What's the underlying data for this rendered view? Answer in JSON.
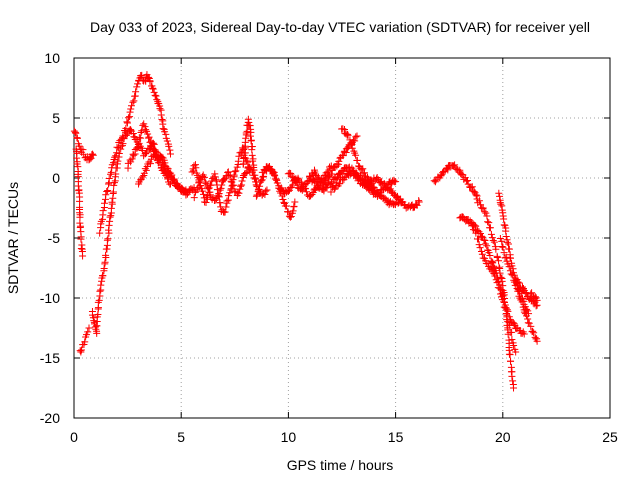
{
  "chart_data": {
    "type": "scatter",
    "title": "Day 033 of 2023, Sidereal Day-to-day VTEC variation (SDTVAR) for receiver yell",
    "xlabel": "GPS time / hours",
    "ylabel": "SDTVAR / TECUs",
    "xlim": [
      0,
      25
    ],
    "ylim": [
      -20,
      10
    ],
    "x_ticks": [
      0,
      5,
      10,
      15,
      20,
      25
    ],
    "x_tick_labels": [
      "0",
      "5",
      "10",
      "15",
      "20",
      "25"
    ],
    "y_ticks": [
      -20,
      -15,
      -10,
      -5,
      0,
      5,
      10
    ],
    "y_tick_labels": [
      "-20",
      "-15",
      "-10",
      "-5",
      "0",
      "5",
      "10"
    ],
    "grid": true,
    "marker": "+",
    "legend": "none",
    "colors": {
      "series": "#ff0000",
      "grid": "#a0a0a0",
      "axis": "#000000"
    },
    "series": [
      {
        "name": "SDTVAR",
        "tracks": [
          {
            "x": [
              0.0,
              0.1,
              0.2,
              0.3,
              0.4,
              0.5,
              0.6,
              0.7,
              0.8,
              0.85,
              0.9
            ],
            "y": [
              4.2,
              3.6,
              3.0,
              2.5,
              2.2,
              1.8,
              1.6,
              1.6,
              1.7,
              1.8,
              1.9
            ]
          },
          {
            "x": [
              0.1,
              0.15,
              0.2,
              0.25,
              0.3,
              0.35,
              0.4
            ],
            "y": [
              2.5,
              1.5,
              0.0,
              -2.0,
              -4.0,
              -5.5,
              -6.5
            ]
          },
          {
            "x": [
              0.3,
              0.4,
              0.5,
              0.6,
              0.7
            ],
            "y": [
              -14.5,
              -14.0,
              -13.5,
              -13.0,
              -12.5
            ]
          },
          {
            "x": [
              0.85,
              0.95,
              1.05,
              1.15,
              1.25,
              1.35,
              1.45,
              1.55,
              1.65,
              1.75,
              1.85,
              1.95,
              2.05,
              2.2,
              2.35,
              2.5,
              2.65,
              2.8,
              2.95,
              3.1,
              3.25,
              3.4,
              3.55,
              3.7,
              3.85,
              4.0,
              4.15,
              4.3,
              4.45,
              4.6,
              4.75,
              4.9,
              5.1,
              5.3
            ],
            "y": [
              -11.0,
              -12.0,
              -13.0,
              -10.5,
              -9.0,
              -8.0,
              -7.0,
              -5.5,
              -4.0,
              -2.5,
              -1.0,
              0.5,
              1.5,
              2.5,
              3.2,
              3.8,
              4.0,
              3.5,
              3.0,
              2.5,
              2.0,
              2.2,
              2.5,
              3.0,
              2.0,
              1.5,
              1.0,
              0.5,
              0.3,
              0.0,
              -0.5,
              -0.8,
              -1.0,
              -1.2
            ]
          },
          {
            "x": [
              1.2,
              1.35,
              1.5,
              1.65,
              1.8,
              1.95,
              2.1,
              2.25,
              2.4,
              2.55,
              2.7,
              2.85,
              3.0,
              3.1,
              3.2,
              3.3,
              3.4,
              3.5,
              3.6,
              3.7,
              3.8,
              3.9,
              4.0,
              4.1,
              4.2,
              4.35,
              4.5
            ],
            "y": [
              -4.5,
              -3.0,
              -1.5,
              0.0,
              1.0,
              2.0,
              2.8,
              3.5,
              4.0,
              5.0,
              6.0,
              7.0,
              8.0,
              8.6,
              8.3,
              8.0,
              8.5,
              8.2,
              7.8,
              7.5,
              7.0,
              6.5,
              6.0,
              5.0,
              4.0,
              3.0,
              2.0
            ]
          },
          {
            "x": [
              2.5,
              2.65,
              2.8,
              2.95,
              3.1,
              3.25,
              3.4,
              3.55,
              3.7,
              3.85,
              4.0,
              4.15,
              4.3,
              4.45,
              4.6,
              4.8,
              5.0,
              5.2,
              5.4,
              5.6
            ],
            "y": [
              1.0,
              1.5,
              2.0,
              2.5,
              3.5,
              4.5,
              4.0,
              3.0,
              2.5,
              2.0,
              1.8,
              1.5,
              1.0,
              0.5,
              0.0,
              -0.5,
              -1.0,
              -1.3,
              -1.0,
              -0.8
            ]
          },
          {
            "x": [
              3.0,
              3.15,
              3.3,
              3.45,
              3.6,
              3.75,
              3.9,
              4.05,
              4.2,
              4.35,
              4.5
            ],
            "y": [
              -0.5,
              0.0,
              0.5,
              1.0,
              1.5,
              2.0,
              1.5,
              1.0,
              0.5,
              0.0,
              -0.5
            ]
          },
          {
            "x": [
              5.5,
              5.65,
              5.8,
              5.95,
              6.1,
              6.25,
              6.4,
              6.55,
              6.7,
              6.85,
              7.0,
              7.15,
              7.3,
              7.45,
              7.6,
              7.75,
              7.9,
              8.05,
              8.2
            ],
            "y": [
              0.5,
              1.0,
              0.0,
              -1.0,
              -2.0,
              -1.5,
              -0.5,
              0.5,
              -1.0,
              -2.5,
              -3.0,
              -2.0,
              -1.0,
              0.0,
              1.0,
              2.0,
              2.5,
              1.5,
              0.5
            ]
          },
          {
            "x": [
              5.6,
              5.8,
              6.0,
              6.2,
              6.4,
              6.6,
              6.8,
              7.0,
              7.2,
              7.4,
              7.6,
              7.8,
              8.0,
              8.2,
              8.4,
              8.6,
              8.8,
              9.0
            ],
            "y": [
              -1.5,
              -0.5,
              0.3,
              -0.5,
              -1.5,
              -2.0,
              -1.0,
              0.0,
              0.5,
              -0.5,
              -1.5,
              -0.5,
              0.5,
              1.0,
              0.0,
              -1.0,
              -1.5,
              -1.0
            ]
          },
          {
            "x": [
              7.9,
              7.95,
              8.0,
              8.05,
              8.1,
              8.15,
              8.2,
              8.25,
              8.3,
              8.35,
              8.4,
              8.5,
              8.6
            ],
            "y": [
              1.0,
              2.0,
              3.0,
              3.8,
              4.5,
              5.0,
              4.2,
              3.5,
              2.5,
              1.5,
              0.5,
              -0.5,
              -1.0
            ]
          },
          {
            "x": [
              8.5,
              8.7,
              8.9,
              9.1,
              9.3,
              9.5,
              9.7,
              9.9,
              10.0,
              10.1,
              10.2,
              10.3
            ],
            "y": [
              -1.5,
              -0.5,
              0.5,
              1.0,
              0.5,
              -0.5,
              -1.5,
              -2.5,
              -3.0,
              -3.3,
              -3.0,
              -2.0
            ]
          },
          {
            "x": [
              8.8,
              9.0,
              9.2,
              9.4,
              9.6,
              9.8,
              10.0,
              10.2,
              10.4,
              10.6,
              10.8,
              11.0,
              11.2,
              11.4,
              11.6,
              11.8,
              12.0
            ],
            "y": [
              0.5,
              1.0,
              0.8,
              0.0,
              -0.8,
              -1.2,
              -1.0,
              -0.5,
              0.0,
              -0.5,
              -1.0,
              -1.5,
              -1.0,
              -0.5,
              0.0,
              0.5,
              1.0
            ]
          },
          {
            "x": [
              10.0,
              10.2,
              10.4,
              10.6,
              10.8,
              11.0,
              11.2,
              11.4,
              11.6,
              11.8,
              12.0,
              12.2,
              12.4,
              12.6,
              12.8,
              13.0,
              13.2
            ],
            "y": [
              0.5,
              0.0,
              -0.5,
              -1.0,
              -0.5,
              0.0,
              0.5,
              0.0,
              -0.5,
              0.0,
              0.5,
              1.0,
              1.5,
              2.0,
              2.5,
              3.0,
              3.5
            ]
          },
          {
            "x": [
              11.0,
              11.3,
              11.6,
              11.9,
              12.2,
              12.5,
              12.8,
              13.1,
              13.4,
              13.7,
              14.0,
              14.3,
              14.6,
              14.9,
              15.2
            ],
            "y": [
              0.0,
              -0.5,
              -1.0,
              -0.5,
              0.0,
              0.5,
              1.0,
              0.5,
              0.0,
              -0.5,
              -1.0,
              -1.5,
              -2.0,
              -2.2,
              -2.0
            ]
          },
          {
            "x": [
              12.5,
              12.6,
              12.7,
              12.8,
              12.9,
              13.0,
              13.1,
              13.2,
              13.3,
              13.4,
              13.5,
              13.6,
              13.7,
              13.8,
              13.9,
              14.0
            ],
            "y": [
              4.2,
              4.0,
              3.8,
              3.5,
              3.0,
              2.5,
              2.0,
              1.5,
              1.0,
              0.8,
              0.5,
              0.3,
              0.0,
              -0.3,
              -0.5,
              -0.8
            ]
          },
          {
            "x": [
              13.5,
              13.8,
              14.1,
              14.4,
              14.7,
              15.0,
              15.3,
              15.6,
              15.9,
              16.1
            ],
            "y": [
              -0.5,
              -0.3,
              0.0,
              -0.5,
              -1.0,
              -1.5,
              -2.0,
              -2.5,
              -2.3,
              -2.0
            ]
          },
          {
            "x": [
              12.0,
              12.3,
              12.6,
              12.9,
              13.2,
              13.5,
              13.8,
              14.1,
              14.4,
              14.7,
              15.0
            ],
            "y": [
              -1.0,
              -0.5,
              0.0,
              0.5,
              0.0,
              -0.5,
              -1.0,
              -1.5,
              -1.0,
              -0.5,
              -0.3
            ]
          },
          {
            "x": [
              16.8,
              17.0,
              17.2,
              17.4,
              17.6,
              17.8,
              18.0,
              18.2,
              18.4,
              18.6,
              18.8
            ],
            "y": [
              -0.2,
              0.0,
              0.4,
              0.8,
              1.0,
              0.9,
              0.5,
              0.0,
              -0.5,
              -1.0,
              -1.5
            ]
          },
          {
            "x": [
              18.8,
              19.0,
              19.2,
              19.4,
              19.6,
              19.8,
              20.0,
              20.15,
              20.3,
              20.4,
              20.5
            ],
            "y": [
              -1.8,
              -2.3,
              -3.0,
              -4.0,
              -5.5,
              -7.0,
              -9.0,
              -11.0,
              -14.0,
              -16.0,
              -17.5
            ]
          },
          {
            "x": [
              18.0,
              18.3,
              18.6,
              18.9,
              19.2,
              19.5,
              19.8,
              20.0,
              20.2,
              20.4,
              20.6
            ],
            "y": [
              -3.3,
              -3.5,
              -3.8,
              -4.5,
              -5.5,
              -7.0,
              -8.5,
              -10.0,
              -11.5,
              -13.0,
              -14.5
            ]
          },
          {
            "x": [
              18.6,
              18.8,
              19.0,
              19.2,
              19.4,
              19.6,
              19.8,
              20.0,
              20.2,
              20.4,
              20.6,
              20.8,
              21.0
            ],
            "y": [
              -4.0,
              -5.0,
              -6.0,
              -7.0,
              -7.5,
              -8.0,
              -9.0,
              -10.0,
              -11.0,
              -12.0,
              -12.5,
              -12.8,
              -13.0
            ]
          },
          {
            "x": [
              19.8,
              19.9,
              20.0,
              20.1,
              20.2,
              20.3,
              20.4,
              20.5,
              20.6,
              20.7,
              20.8,
              20.9,
              21.0,
              21.1,
              21.2
            ],
            "y": [
              -1.2,
              -2.0,
              -3.0,
              -4.0,
              -5.0,
              -6.0,
              -7.0,
              -7.8,
              -8.5,
              -9.0,
              -9.5,
              -10.0,
              -10.5,
              -11.0,
              -11.3
            ]
          },
          {
            "x": [
              19.9,
              20.1,
              20.3,
              20.5,
              20.7,
              20.9,
              21.1,
              21.3,
              21.5,
              21.6
            ],
            "y": [
              -5.0,
              -6.5,
              -7.5,
              -8.5,
              -9.5,
              -10.5,
              -11.5,
              -12.5,
              -13.2,
              -13.6
            ]
          },
          {
            "x": [
              20.6,
              20.8,
              21.0,
              21.2,
              21.4,
              21.6
            ],
            "y": [
              -8.5,
              -9.0,
              -9.5,
              -10.0,
              -10.3,
              -10.6
            ]
          },
          {
            "x": [
              21.3,
              21.45,
              21.6
            ],
            "y": [
              -9.5,
              -9.8,
              -10.2
            ]
          }
        ]
      }
    ]
  }
}
